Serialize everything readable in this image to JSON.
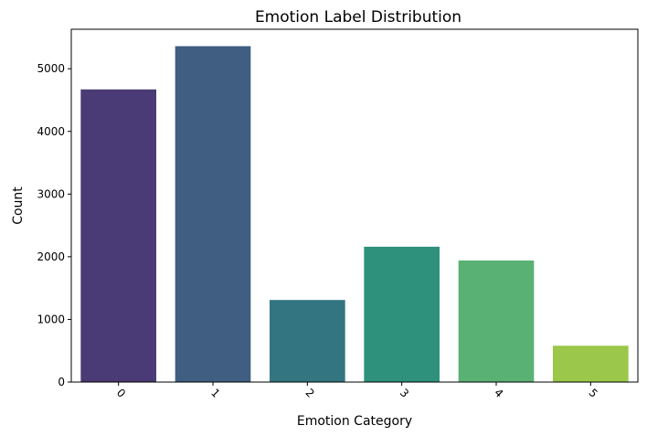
{
  "chart_data": {
    "type": "bar",
    "title": "Emotion Label Distribution",
    "xlabel": "Emotion Category",
    "ylabel": "Count",
    "categories": [
      "0",
      "1",
      "2",
      "3",
      "4",
      "5"
    ],
    "values": [
      4670,
      5360,
      1310,
      2160,
      1940,
      580
    ],
    "colors": [
      "#4a3a75",
      "#405e82",
      "#337681",
      "#2e917c",
      "#59b273",
      "#9bc74b"
    ],
    "ylim": [
      0,
      5630
    ],
    "yticks": [
      0,
      1000,
      2000,
      3000,
      4000,
      5000
    ],
    "ytick_labels": [
      "0",
      "1000",
      "2000",
      "3000",
      "4000",
      "5000"
    ],
    "xtick_rotation": 45,
    "grid": false,
    "legend": false
  }
}
